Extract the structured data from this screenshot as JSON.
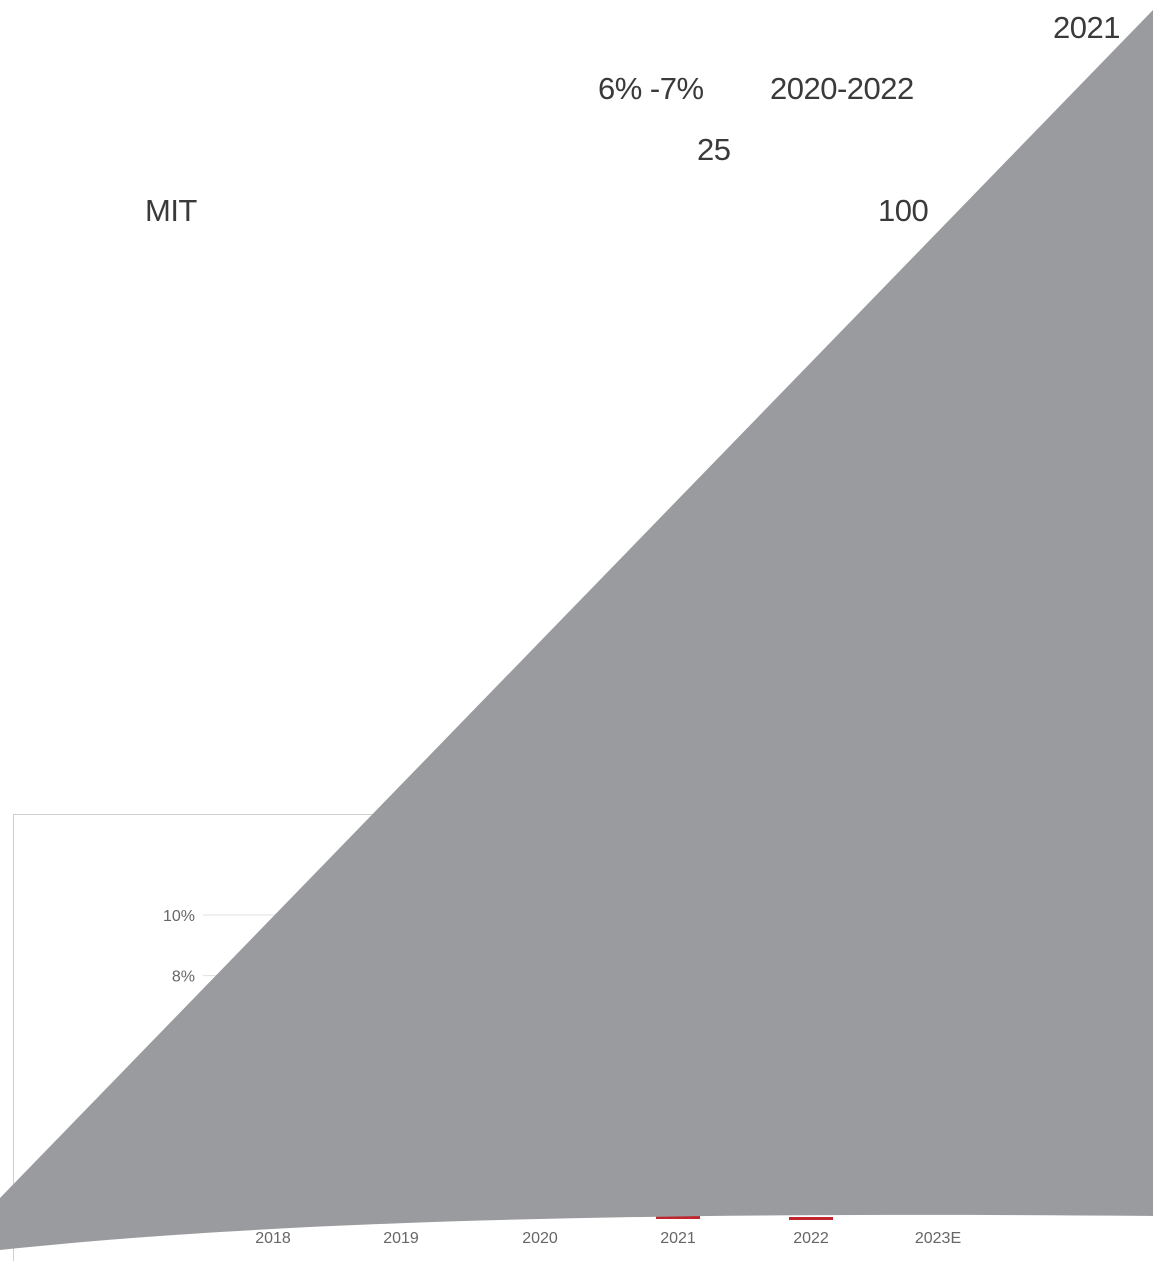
{
  "header_texts": {
    "year": "2021",
    "growth_range": "6% -7%",
    "period": "2020-2022",
    "number_25": "25",
    "org": "MIT",
    "number_100": "100"
  },
  "colors": {
    "overlay": "#9a9b9e",
    "gridline": "#e0e0e0",
    "bar_accent": "#c0262d",
    "text": "#3a3a3a"
  },
  "chart_data": {
    "type": "bar",
    "categories": [
      "2018",
      "2019",
      "2020",
      "2021",
      "2022",
      "2023E"
    ],
    "y_tick_labels": [
      "8%",
      "10%"
    ],
    "y_ticks": [
      8,
      10
    ],
    "ylim": [
      0,
      12
    ],
    "grid": true,
    "title": "",
    "xlabel": "",
    "ylabel": ""
  }
}
